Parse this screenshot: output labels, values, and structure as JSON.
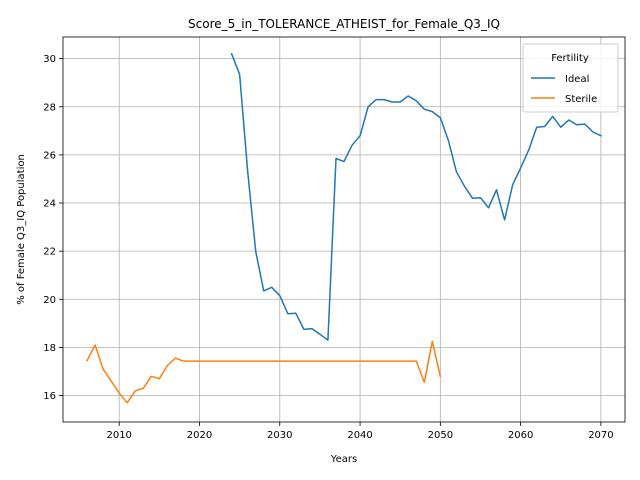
{
  "chart_data": {
    "type": "line",
    "title": "Score_5_in_TOLERANCE_ATHEIST_for_Female_Q3_IQ",
    "xlabel": "Years",
    "ylabel": "% of Female Q3_IQ Population",
    "xlim": [
      2003,
      2073
    ],
    "ylim": [
      14.9,
      30.9
    ],
    "xticks": [
      2010,
      2020,
      2030,
      2040,
      2050,
      2060,
      2070
    ],
    "yticks": [
      16,
      18,
      20,
      22,
      24,
      26,
      28,
      30
    ],
    "grid": true,
    "legend": {
      "title": "Fertility",
      "placement": "top-right"
    },
    "series": [
      {
        "name": "Ideal",
        "color": "#1f77b4",
        "x": [
          2024,
          2025,
          2026,
          2027,
          2028,
          2029,
          2030,
          2031,
          2032,
          2033,
          2034,
          2035,
          2036,
          2037,
          2038,
          2039,
          2040,
          2041,
          2042,
          2043,
          2044,
          2045,
          2046,
          2047,
          2048,
          2049,
          2050,
          2051,
          2052,
          2053,
          2054,
          2055,
          2056,
          2057,
          2058,
          2059,
          2060,
          2061,
          2062,
          2063,
          2064,
          2065,
          2066,
          2067,
          2068,
          2069,
          2070
        ],
        "y": [
          30.2,
          29.35,
          25.3,
          22.0,
          20.35,
          20.5,
          20.15,
          19.4,
          19.42,
          18.75,
          18.78,
          18.55,
          18.3,
          25.85,
          25.72,
          26.4,
          26.8,
          28.0,
          28.3,
          28.3,
          28.2,
          28.2,
          28.45,
          28.25,
          27.9,
          27.8,
          27.55,
          26.6,
          25.3,
          24.7,
          24.2,
          24.22,
          23.8,
          24.55,
          23.3,
          24.75,
          25.45,
          26.2,
          27.15,
          27.18,
          27.6,
          27.15,
          27.45,
          27.25,
          27.28,
          26.95,
          26.8
        ]
      },
      {
        "name": "Sterile",
        "color": "#ff7f0e",
        "x": [
          2006,
          2007,
          2008,
          2009,
          2010,
          2011,
          2012,
          2013,
          2014,
          2015,
          2016,
          2017,
          2018,
          2019,
          2020,
          2021,
          2022,
          2023,
          2024,
          2025,
          2026,
          2027,
          2028,
          2029,
          2030,
          2031,
          2032,
          2033,
          2034,
          2035,
          2036,
          2037,
          2038,
          2039,
          2040,
          2041,
          2042,
          2043,
          2044,
          2045,
          2046,
          2047,
          2048,
          2049,
          2050
        ],
        "y": [
          17.45,
          18.1,
          17.1,
          16.6,
          16.1,
          15.7,
          16.2,
          16.3,
          16.8,
          16.7,
          17.25,
          17.55,
          17.43,
          17.43,
          17.43,
          17.43,
          17.43,
          17.43,
          17.43,
          17.43,
          17.43,
          17.43,
          17.43,
          17.43,
          17.43,
          17.43,
          17.43,
          17.43,
          17.43,
          17.43,
          17.43,
          17.43,
          17.43,
          17.43,
          17.43,
          17.43,
          17.43,
          17.43,
          17.43,
          17.43,
          17.43,
          17.43,
          16.55,
          18.25,
          16.8
        ]
      }
    ]
  }
}
